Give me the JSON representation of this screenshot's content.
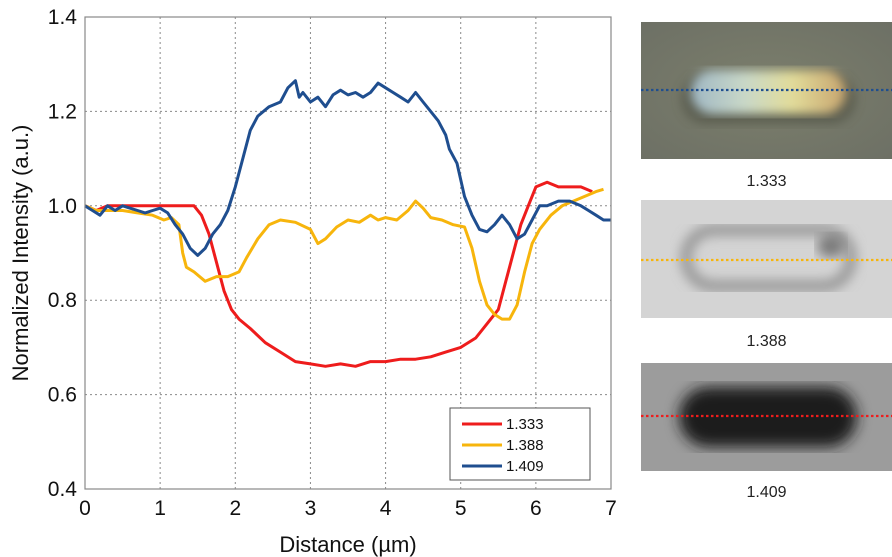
{
  "chart_data": {
    "type": "line",
    "title": "",
    "xlabel": "Distance (µm)",
    "ylabel": "Normalized Intensity (a.u.)",
    "xlim": [
      0,
      7
    ],
    "ylim": [
      0.4,
      1.4
    ],
    "xticks": [
      "0",
      "1",
      "2",
      "3",
      "4",
      "5",
      "6",
      "7"
    ],
    "yticks": [
      "0.4",
      "0.6",
      "0.8",
      "1.0",
      "1.2",
      "1.4"
    ],
    "grid": true,
    "legend_position": "bottom-right",
    "series": [
      {
        "name": "1.333",
        "color": "#ee1c1c",
        "points": [
          [
            0,
            1.0
          ],
          [
            0.15,
            0.99
          ],
          [
            0.3,
            1.0
          ],
          [
            0.5,
            1.0
          ],
          [
            0.7,
            1.0
          ],
          [
            0.9,
            1.0
          ],
          [
            1.1,
            1.0
          ],
          [
            1.3,
            1.0
          ],
          [
            1.45,
            1.0
          ],
          [
            1.55,
            0.98
          ],
          [
            1.65,
            0.94
          ],
          [
            1.75,
            0.88
          ],
          [
            1.85,
            0.82
          ],
          [
            1.95,
            0.78
          ],
          [
            2.05,
            0.76
          ],
          [
            2.2,
            0.74
          ],
          [
            2.4,
            0.71
          ],
          [
            2.6,
            0.69
          ],
          [
            2.8,
            0.67
          ],
          [
            3.0,
            0.665
          ],
          [
            3.2,
            0.66
          ],
          [
            3.4,
            0.665
          ],
          [
            3.6,
            0.66
          ],
          [
            3.8,
            0.67
          ],
          [
            4.0,
            0.67
          ],
          [
            4.2,
            0.675
          ],
          [
            4.4,
            0.675
          ],
          [
            4.6,
            0.68
          ],
          [
            4.8,
            0.69
          ],
          [
            5.0,
            0.7
          ],
          [
            5.2,
            0.72
          ],
          [
            5.35,
            0.75
          ],
          [
            5.5,
            0.78
          ],
          [
            5.6,
            0.84
          ],
          [
            5.7,
            0.9
          ],
          [
            5.8,
            0.96
          ],
          [
            5.9,
            1.0
          ],
          [
            6.0,
            1.04
          ],
          [
            6.15,
            1.05
          ],
          [
            6.3,
            1.04
          ],
          [
            6.45,
            1.04
          ],
          [
            6.6,
            1.04
          ],
          [
            6.75,
            1.03
          ]
        ]
      },
      {
        "name": "1.388",
        "color": "#f7b50c",
        "points": [
          [
            0,
            1.0
          ],
          [
            0.15,
            0.99
          ],
          [
            0.3,
            0.99
          ],
          [
            0.5,
            0.99
          ],
          [
            0.7,
            0.985
          ],
          [
            0.9,
            0.98
          ],
          [
            1.05,
            0.97
          ],
          [
            1.15,
            0.975
          ],
          [
            1.25,
            0.96
          ],
          [
            1.3,
            0.9
          ],
          [
            1.35,
            0.87
          ],
          [
            1.45,
            0.86
          ],
          [
            1.6,
            0.84
          ],
          [
            1.75,
            0.85
          ],
          [
            1.9,
            0.85
          ],
          [
            2.05,
            0.86
          ],
          [
            2.15,
            0.89
          ],
          [
            2.3,
            0.93
          ],
          [
            2.45,
            0.96
          ],
          [
            2.6,
            0.97
          ],
          [
            2.8,
            0.965
          ],
          [
            3.0,
            0.95
          ],
          [
            3.1,
            0.92
          ],
          [
            3.2,
            0.93
          ],
          [
            3.35,
            0.955
          ],
          [
            3.5,
            0.97
          ],
          [
            3.65,
            0.965
          ],
          [
            3.8,
            0.98
          ],
          [
            3.9,
            0.97
          ],
          [
            4.0,
            0.975
          ],
          [
            4.15,
            0.97
          ],
          [
            4.3,
            0.99
          ],
          [
            4.4,
            1.01
          ],
          [
            4.5,
            0.995
          ],
          [
            4.6,
            0.975
          ],
          [
            4.75,
            0.97
          ],
          [
            4.9,
            0.96
          ],
          [
            5.05,
            0.955
          ],
          [
            5.15,
            0.91
          ],
          [
            5.25,
            0.84
          ],
          [
            5.35,
            0.79
          ],
          [
            5.45,
            0.77
          ],
          [
            5.55,
            0.76
          ],
          [
            5.65,
            0.76
          ],
          [
            5.75,
            0.79
          ],
          [
            5.85,
            0.86
          ],
          [
            5.95,
            0.92
          ],
          [
            6.05,
            0.95
          ],
          [
            6.2,
            0.98
          ],
          [
            6.35,
            1.0
          ],
          [
            6.5,
            1.01
          ],
          [
            6.65,
            1.02
          ],
          [
            6.8,
            1.03
          ],
          [
            6.9,
            1.035
          ]
        ]
      },
      {
        "name": "1.409",
        "color": "#1f4e8f",
        "points": [
          [
            0,
            1.0
          ],
          [
            0.1,
            0.99
          ],
          [
            0.2,
            0.98
          ],
          [
            0.3,
            1.0
          ],
          [
            0.4,
            0.99
          ],
          [
            0.5,
            1.0
          ],
          [
            0.6,
            0.995
          ],
          [
            0.7,
            0.99
          ],
          [
            0.8,
            0.985
          ],
          [
            0.9,
            0.99
          ],
          [
            1.0,
            0.995
          ],
          [
            1.1,
            0.985
          ],
          [
            1.2,
            0.96
          ],
          [
            1.3,
            0.94
          ],
          [
            1.4,
            0.91
          ],
          [
            1.5,
            0.895
          ],
          [
            1.6,
            0.91
          ],
          [
            1.7,
            0.94
          ],
          [
            1.8,
            0.96
          ],
          [
            1.9,
            0.99
          ],
          [
            2.0,
            1.04
          ],
          [
            2.1,
            1.1
          ],
          [
            2.2,
            1.16
          ],
          [
            2.3,
            1.19
          ],
          [
            2.45,
            1.21
          ],
          [
            2.6,
            1.22
          ],
          [
            2.7,
            1.25
          ],
          [
            2.8,
            1.265
          ],
          [
            2.85,
            1.23
          ],
          [
            2.9,
            1.24
          ],
          [
            3.0,
            1.22
          ],
          [
            3.1,
            1.23
          ],
          [
            3.2,
            1.21
          ],
          [
            3.3,
            1.235
          ],
          [
            3.4,
            1.245
          ],
          [
            3.5,
            1.235
          ],
          [
            3.6,
            1.24
          ],
          [
            3.7,
            1.23
          ],
          [
            3.8,
            1.24
          ],
          [
            3.9,
            1.26
          ],
          [
            4.0,
            1.25
          ],
          [
            4.1,
            1.24
          ],
          [
            4.2,
            1.23
          ],
          [
            4.3,
            1.22
          ],
          [
            4.4,
            1.24
          ],
          [
            4.5,
            1.22
          ],
          [
            4.6,
            1.2
          ],
          [
            4.7,
            1.18
          ],
          [
            4.8,
            1.15
          ],
          [
            4.85,
            1.12
          ],
          [
            4.95,
            1.09
          ],
          [
            5.05,
            1.02
          ],
          [
            5.15,
            0.98
          ],
          [
            5.25,
            0.95
          ],
          [
            5.35,
            0.945
          ],
          [
            5.45,
            0.96
          ],
          [
            5.55,
            0.98
          ],
          [
            5.65,
            0.96
          ],
          [
            5.75,
            0.93
          ],
          [
            5.85,
            0.94
          ],
          [
            5.95,
            0.97
          ],
          [
            6.05,
            1.0
          ],
          [
            6.15,
            1.0
          ],
          [
            6.3,
            1.01
          ],
          [
            6.45,
            1.01
          ],
          [
            6.6,
            1.0
          ],
          [
            6.7,
            0.99
          ],
          [
            6.8,
            0.98
          ],
          [
            6.9,
            0.97
          ],
          [
            7.0,
            0.97
          ]
        ]
      }
    ]
  },
  "panels": [
    {
      "caption": "1.333",
      "line_color": "#1f4e8f"
    },
    {
      "caption": "1.388",
      "line_color": "#f7b50c"
    },
    {
      "caption": "1.409",
      "line_color": "#ee1c1c"
    }
  ]
}
